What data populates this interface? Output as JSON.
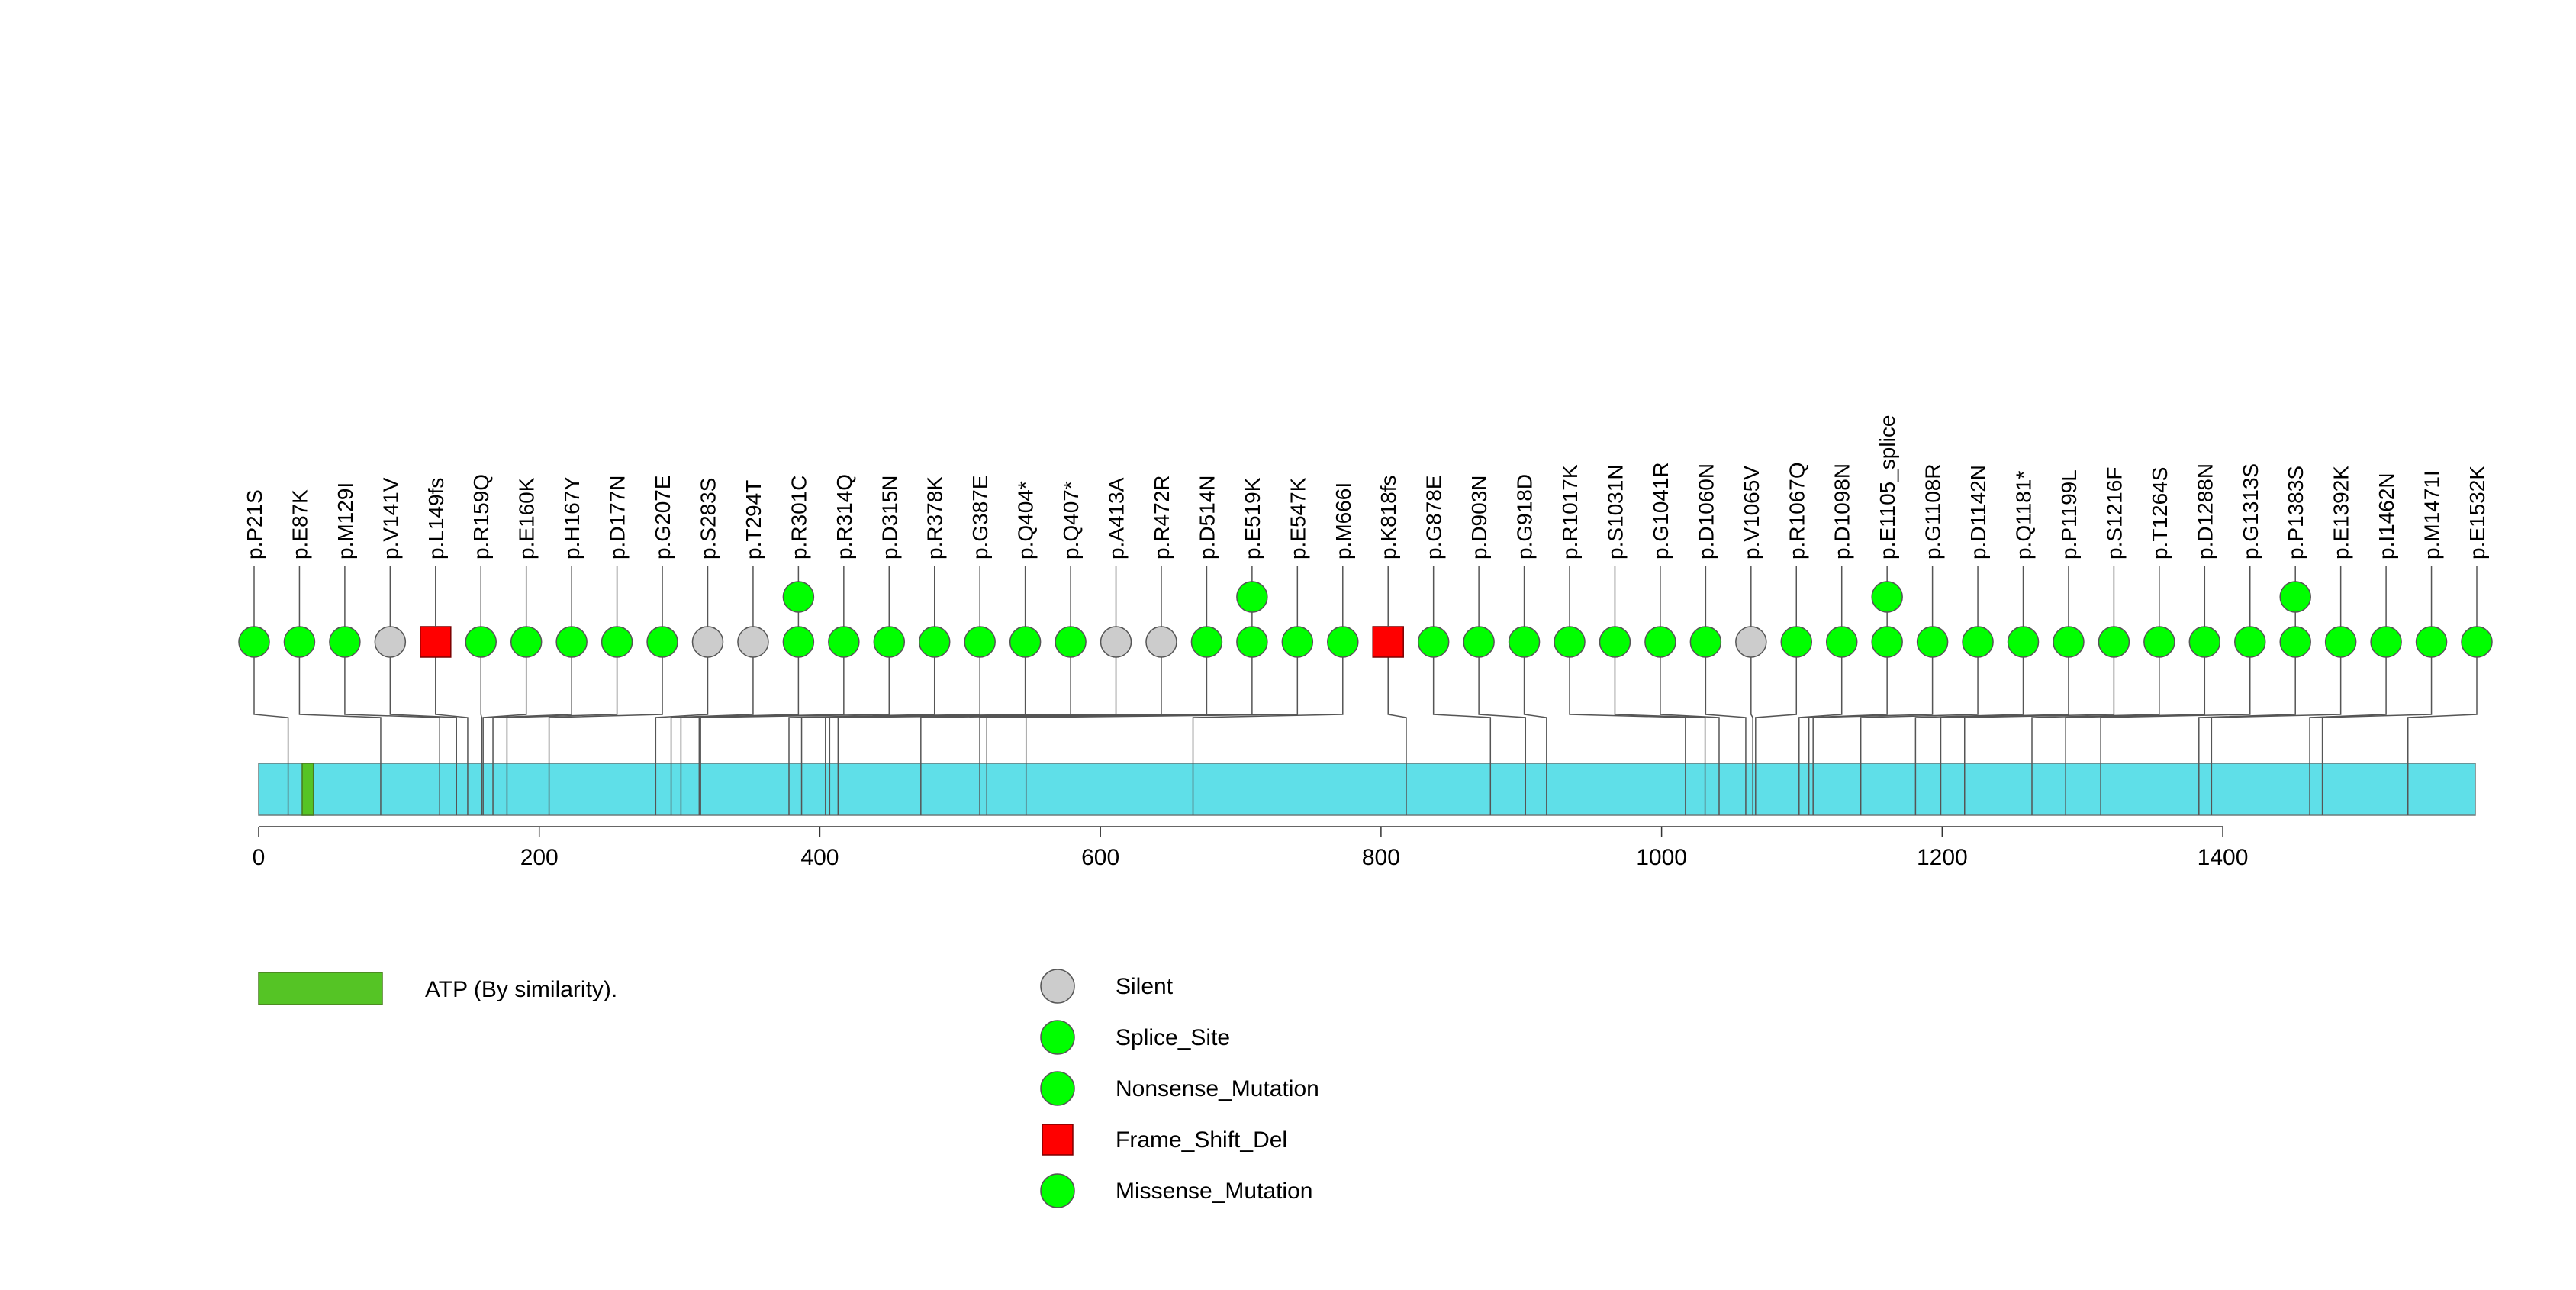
{
  "chart_data": {
    "type": "lollipop",
    "protein_length": 1580,
    "x_ticks": [
      0,
      200,
      400,
      600,
      800,
      1000,
      1200,
      1400
    ],
    "domain": {
      "name": "ATP (By similarity).",
      "start": 31,
      "end": 39,
      "color": "#55c425"
    },
    "backbone_color": "#5fdfe8",
    "colors": {
      "Silent": "#cccccc",
      "Splice_Site": "#00ff00",
      "Nonsense_Mutation": "#00ff00",
      "Frame_Shift_Del": "#ff0000",
      "Missense_Mutation": "#00ff00"
    },
    "legend": [
      {
        "label": "Silent",
        "shape": "circle",
        "color": "#cccccc"
      },
      {
        "label": "Splice_Site",
        "shape": "circle",
        "color": "#00ff00"
      },
      {
        "label": "Nonsense_Mutation",
        "shape": "circle",
        "color": "#00ff00"
      },
      {
        "label": "Frame_Shift_Del",
        "shape": "square",
        "color": "#ff0000"
      },
      {
        "label": "Missense_Mutation",
        "shape": "circle",
        "color": "#00ff00"
      }
    ],
    "mutations": [
      {
        "label": "p.P21S",
        "pos": 21,
        "type": "Missense_Mutation",
        "count": 1
      },
      {
        "label": "p.E87K",
        "pos": 87,
        "type": "Missense_Mutation",
        "count": 1
      },
      {
        "label": "p.M129I",
        "pos": 129,
        "type": "Missense_Mutation",
        "count": 1
      },
      {
        "label": "p.V141V",
        "pos": 141,
        "type": "Silent",
        "count": 1
      },
      {
        "label": "p.L149fs",
        "pos": 149,
        "type": "Frame_Shift_Del",
        "count": 1
      },
      {
        "label": "p.R159Q",
        "pos": 159,
        "type": "Missense_Mutation",
        "count": 1
      },
      {
        "label": "p.E160K",
        "pos": 160,
        "type": "Missense_Mutation",
        "count": 1
      },
      {
        "label": "p.H167Y",
        "pos": 167,
        "type": "Missense_Mutation",
        "count": 1
      },
      {
        "label": "p.D177N",
        "pos": 177,
        "type": "Missense_Mutation",
        "count": 1
      },
      {
        "label": "p.G207E",
        "pos": 207,
        "type": "Missense_Mutation",
        "count": 1
      },
      {
        "label": "p.S283S",
        "pos": 283,
        "type": "Silent",
        "count": 1
      },
      {
        "label": "p.T294T",
        "pos": 294,
        "type": "Silent",
        "count": 1
      },
      {
        "label": "p.R301C",
        "pos": 301,
        "type": "Missense_Mutation",
        "count": 2
      },
      {
        "label": "p.R314Q",
        "pos": 314,
        "type": "Missense_Mutation",
        "count": 1
      },
      {
        "label": "p.D315N",
        "pos": 315,
        "type": "Missense_Mutation",
        "count": 1
      },
      {
        "label": "p.R378K",
        "pos": 378,
        "type": "Missense_Mutation",
        "count": 1
      },
      {
        "label": "p.G387E",
        "pos": 387,
        "type": "Missense_Mutation",
        "count": 1
      },
      {
        "label": "p.Q404*",
        "pos": 404,
        "type": "Nonsense_Mutation",
        "count": 1
      },
      {
        "label": "p.Q407*",
        "pos": 407,
        "type": "Nonsense_Mutation",
        "count": 1
      },
      {
        "label": "p.A413A",
        "pos": 413,
        "type": "Silent",
        "count": 1
      },
      {
        "label": "p.R472R",
        "pos": 472,
        "type": "Silent",
        "count": 1
      },
      {
        "label": "p.D514N",
        "pos": 514,
        "type": "Missense_Mutation",
        "count": 1
      },
      {
        "label": "p.E519K",
        "pos": 519,
        "type": "Missense_Mutation",
        "count": 2
      },
      {
        "label": "p.E547K",
        "pos": 547,
        "type": "Missense_Mutation",
        "count": 1
      },
      {
        "label": "p.M666I",
        "pos": 666,
        "type": "Missense_Mutation",
        "count": 1
      },
      {
        "label": "p.K818fs",
        "pos": 818,
        "type": "Frame_Shift_Del",
        "count": 1
      },
      {
        "label": "p.G878E",
        "pos": 878,
        "type": "Missense_Mutation",
        "count": 1
      },
      {
        "label": "p.D903N",
        "pos": 903,
        "type": "Missense_Mutation",
        "count": 1
      },
      {
        "label": "p.G918D",
        "pos": 918,
        "type": "Missense_Mutation",
        "count": 1
      },
      {
        "label": "p.R1017K",
        "pos": 1017,
        "type": "Missense_Mutation",
        "count": 1
      },
      {
        "label": "p.S1031N",
        "pos": 1031,
        "type": "Missense_Mutation",
        "count": 1
      },
      {
        "label": "p.G1041R",
        "pos": 1041,
        "type": "Missense_Mutation",
        "count": 1
      },
      {
        "label": "p.D1060N",
        "pos": 1060,
        "type": "Missense_Mutation",
        "count": 1
      },
      {
        "label": "p.V1065V",
        "pos": 1065,
        "type": "Silent",
        "count": 1
      },
      {
        "label": "p.R1067Q",
        "pos": 1067,
        "type": "Missense_Mutation",
        "count": 1
      },
      {
        "label": "p.D1098N",
        "pos": 1098,
        "type": "Missense_Mutation",
        "count": 1
      },
      {
        "label": "p.E1105_splice",
        "pos": 1105,
        "type": "Splice_Site",
        "count": 2
      },
      {
        "label": "p.G1108R",
        "pos": 1108,
        "type": "Missense_Mutation",
        "count": 1
      },
      {
        "label": "p.D1142N",
        "pos": 1142,
        "type": "Missense_Mutation",
        "count": 1
      },
      {
        "label": "p.Q1181*",
        "pos": 1181,
        "type": "Nonsense_Mutation",
        "count": 1
      },
      {
        "label": "p.P1199L",
        "pos": 1199,
        "type": "Missense_Mutation",
        "count": 1
      },
      {
        "label": "p.S1216F",
        "pos": 1216,
        "type": "Missense_Mutation",
        "count": 1
      },
      {
        "label": "p.T1264S",
        "pos": 1264,
        "type": "Missense_Mutation",
        "count": 1
      },
      {
        "label": "p.D1288N",
        "pos": 1288,
        "type": "Missense_Mutation",
        "count": 1
      },
      {
        "label": "p.G1313S",
        "pos": 1313,
        "type": "Missense_Mutation",
        "count": 1
      },
      {
        "label": "p.P1383S",
        "pos": 1383,
        "type": "Missense_Mutation",
        "count": 2
      },
      {
        "label": "p.E1392K",
        "pos": 1392,
        "type": "Missense_Mutation",
        "count": 1
      },
      {
        "label": "p.I1462N",
        "pos": 1462,
        "type": "Missense_Mutation",
        "count": 1
      },
      {
        "label": "p.M1471I",
        "pos": 1471,
        "type": "Missense_Mutation",
        "count": 1
      },
      {
        "label": "p.E1532K",
        "pos": 1532,
        "type": "Missense_Mutation",
        "count": 1
      }
    ]
  }
}
